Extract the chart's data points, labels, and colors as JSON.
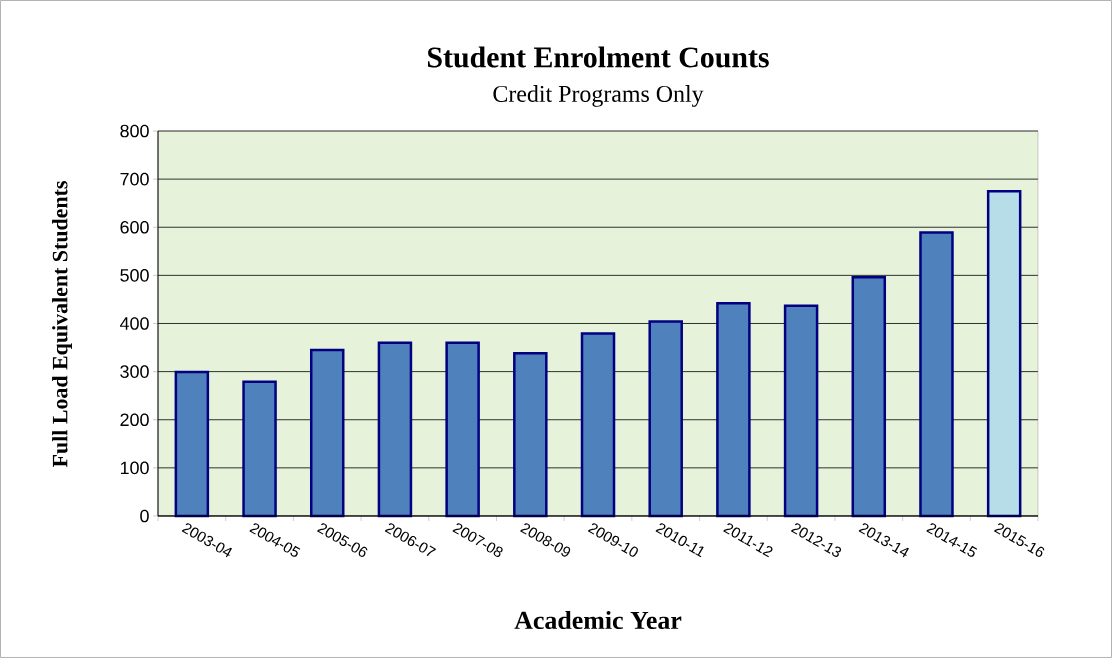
{
  "chart_data": {
    "type": "bar",
    "title": "Student Enrolment Counts",
    "subtitle": "Credit Programs Only",
    "xlabel": "Academic Year",
    "ylabel": "Full Load Equivalent Students",
    "categories": [
      "2003-04",
      "2004-05",
      "2005-06",
      "2006-07",
      "2007-08",
      "2008-09",
      "2009-10",
      "2010-11",
      "2011-12",
      "2012-13",
      "2013-14",
      "2014-15",
      "2015-16"
    ],
    "values": [
      299,
      279,
      345,
      360,
      360,
      338,
      379,
      404,
      442,
      437,
      496,
      589,
      675
    ],
    "colors": [
      "#4f81bd",
      "#4f81bd",
      "#4f81bd",
      "#4f81bd",
      "#4f81bd",
      "#4f81bd",
      "#4f81bd",
      "#4f81bd",
      "#4f81bd",
      "#4f81bd",
      "#4f81bd",
      "#4f81bd",
      "#b7dde8"
    ],
    "ylim": [
      0,
      800
    ],
    "yticks": [
      0,
      100,
      200,
      300,
      400,
      500,
      600,
      700,
      800
    ],
    "grid": "y"
  }
}
